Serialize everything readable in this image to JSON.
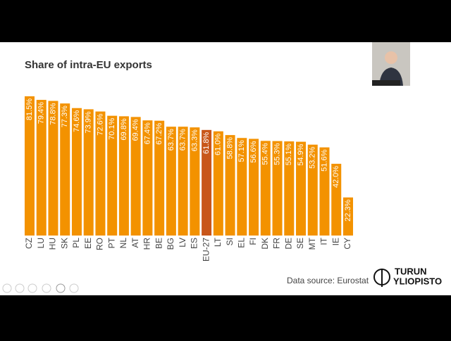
{
  "chart_data": {
    "type": "bar",
    "title": "Share of intra-EU exports",
    "categories": [
      "CZ",
      "LU",
      "HU",
      "SK",
      "PL",
      "EE",
      "RO",
      "PT",
      "NL",
      "AT",
      "HR",
      "BE",
      "BG",
      "LV",
      "ES",
      "EU-27",
      "LT",
      "SI",
      "EL",
      "FI",
      "DK",
      "FR",
      "DE",
      "SE",
      "MT",
      "IT",
      "IE",
      "CY"
    ],
    "values": [
      81.5,
      79.4,
      78.8,
      77.3,
      74.6,
      73.9,
      72.6,
      70.1,
      69.8,
      69.4,
      67.4,
      67.2,
      63.7,
      63.7,
      63.3,
      61.8,
      61.0,
      58.8,
      57.1,
      56.6,
      55.4,
      55.3,
      55.1,
      54.9,
      53.2,
      51.6,
      42.0,
      22.3
    ],
    "value_labels": [
      "81.5%",
      "79.4%",
      "78.8%",
      "77.3%",
      "74.6%",
      "73.9%",
      "72.6%",
      "70.1%",
      "69.8%",
      "69.4%",
      "67.4%",
      "67.2%",
      "63.7%",
      "63.7%",
      "63.3%",
      "61.8%",
      "61.0%",
      "58.8%",
      "57.1%",
      "56.6%",
      "55.4%",
      "55.3%",
      "55.1%",
      "54.9%",
      "53.2%",
      "51.6%",
      "42.0%",
      "22.3%"
    ],
    "colors": [
      "#f39200",
      "#f39200",
      "#f39200",
      "#f39200",
      "#f39200",
      "#f39200",
      "#f39200",
      "#f39200",
      "#f39200",
      "#f39200",
      "#f39200",
      "#f39200",
      "#f39200",
      "#f39200",
      "#f39200",
      "#c8561a",
      "#f39200",
      "#f39200",
      "#f39200",
      "#f39200",
      "#f39200",
      "#f39200",
      "#f39200",
      "#f39200",
      "#f39200",
      "#f39200",
      "#f39200",
      "#f39200"
    ],
    "source": "Data source: Eurostat"
  },
  "logo": {
    "line1": "TURUN",
    "line2": "YLIOPISTO"
  }
}
